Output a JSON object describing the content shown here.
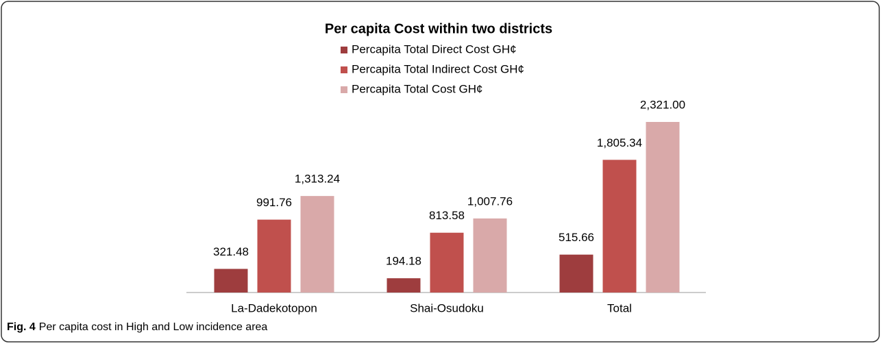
{
  "chart_data": {
    "type": "bar",
    "title": "Per capita Cost within two districts",
    "categories": [
      "La-Dadekotopon",
      "Shai-Osudoku",
      "Total"
    ],
    "series": [
      {
        "name": "Percapita Total Direct Cost GH¢",
        "color": "#9e3d3e",
        "values": [
          321.48,
          194.18,
          515.66
        ],
        "value_labels": [
          "321.48",
          "194.18",
          "515.66"
        ]
      },
      {
        "name": "Percapita Total Indirect Cost GH¢",
        "color": "#c0504d",
        "values": [
          991.76,
          813.58,
          1805.34
        ],
        "value_labels": [
          "991.76",
          "813.58",
          "1,805.34"
        ]
      },
      {
        "name": "Percapita Total Cost GH¢",
        "color": "#d9a9a9",
        "values": [
          1313.24,
          1007.76,
          2321.0
        ],
        "value_labels": [
          "1,313.24",
          "1,007.76",
          "2,321.00"
        ]
      }
    ]
  },
  "caption": {
    "label": "Fig. 4",
    "text": "Per capita cost in High and Low incidence area"
  }
}
